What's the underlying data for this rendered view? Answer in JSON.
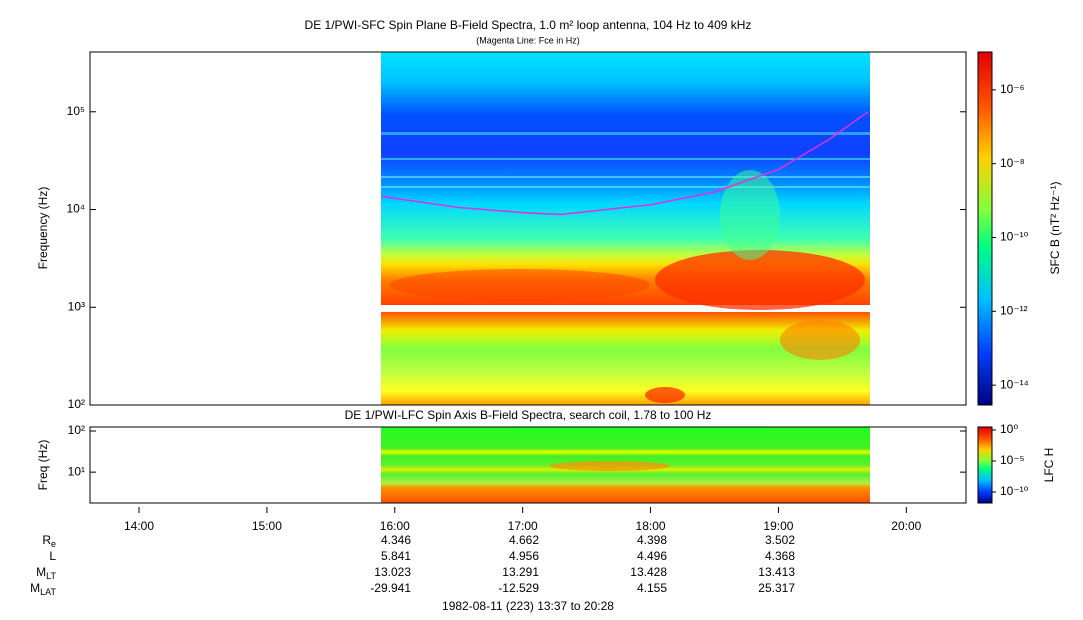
{
  "chart_data": [
    {
      "type": "spectrogram",
      "title": "DE 1/PWI-SFC  Spin Plane B-Field Spectra, 1.0 m² loop antenna, 104 Hz to 409 kHz",
      "subtitle": "(Magenta Line: Fce in Hz)",
      "ylabel": "Frequency (Hz)",
      "log_y": true,
      "xlim": [
        13.616667,
        20.466667
      ],
      "ylim": [
        100,
        409000
      ],
      "yticks": [
        {
          "value": 100,
          "label": "10²"
        },
        {
          "value": 1000,
          "label": "10³"
        },
        {
          "value": 10000,
          "label": "10⁴"
        },
        {
          "value": 100000,
          "label": "10⁵"
        }
      ],
      "series": [
        {
          "color": "#e030e0",
          "x": [
            15.9,
            16.5,
            17.0,
            17.3,
            18.0,
            18.5,
            19.0,
            19.4,
            19.7
          ],
          "values": [
            13600,
            10500,
            9300,
            8900,
            11200,
            15100,
            25700,
            52600,
            100000
          ]
        }
      ],
      "colorbar": {
        "label": "SFC B (nT² Hz⁻¹)",
        "log": true,
        "lim": [
          2.9e-15,
          1.06e-05
        ],
        "ticks": [
          {
            "value": 1e-06,
            "label": "10⁻⁶"
          },
          {
            "value": 1e-08,
            "label": "10⁻⁸"
          },
          {
            "value": 1e-10,
            "label": "10⁻¹⁰"
          },
          {
            "value": 1e-12,
            "label": "10⁻¹²"
          },
          {
            "value": 1e-14,
            "label": "10⁻¹⁴"
          }
        ]
      }
    },
    {
      "type": "spectrogram",
      "title": "DE 1/PWI-LFC  Spin Axis B-Field Spectra, search coil, 1.78 to 100 Hz",
      "ylabel": "Freq (Hz)",
      "log_y": true,
      "xlim": [
        13.616667,
        20.466667
      ],
      "ylim": [
        1.78,
        125
      ],
      "yticks": [
        {
          "value": 10,
          "label": "10¹"
        },
        {
          "value": 100,
          "label": "10²"
        }
      ],
      "xticks": [
        {
          "value": 14,
          "label": "14:00"
        },
        {
          "value": 15,
          "label": "15:00"
        },
        {
          "value": 16,
          "label": "16:00"
        },
        {
          "value": 17,
          "label": "17:00"
        },
        {
          "value": 18,
          "label": "18:00"
        },
        {
          "value": 19,
          "label": "19:00"
        },
        {
          "value": 20,
          "label": "20:00"
        }
      ],
      "colorbar": {
        "label": "LFC H",
        "log": true,
        "lim": [
          1.7e-12,
          3
        ],
        "ticks": [
          {
            "value": 1,
            "label": "10⁰"
          },
          {
            "value": 1e-05,
            "label": "10⁻⁵"
          },
          {
            "value": 1e-10,
            "label": "10⁻¹⁰"
          }
        ]
      }
    }
  ],
  "ephemeris": {
    "rows": [
      {
        "label": {
          "main": "R",
          "sub": "e"
        },
        "values": [
          "4.346",
          "4.662",
          "4.398",
          "3.502"
        ]
      },
      {
        "label": {
          "main": "L",
          "sub": ""
        },
        "values": [
          "5.841",
          "4.956",
          "4.496",
          "4.368"
        ]
      },
      {
        "label": {
          "main": "M",
          "sub": "LT"
        },
        "values": [
          "13.023",
          "13.291",
          "13.428",
          "13.413"
        ]
      },
      {
        "label": {
          "main": "M",
          "sub": "LAT"
        },
        "values": [
          "-29.941",
          "-12.529",
          "4.155",
          "25.317"
        ]
      }
    ]
  },
  "footer": "1982-08-11 (223) 13:37 to 20:28"
}
